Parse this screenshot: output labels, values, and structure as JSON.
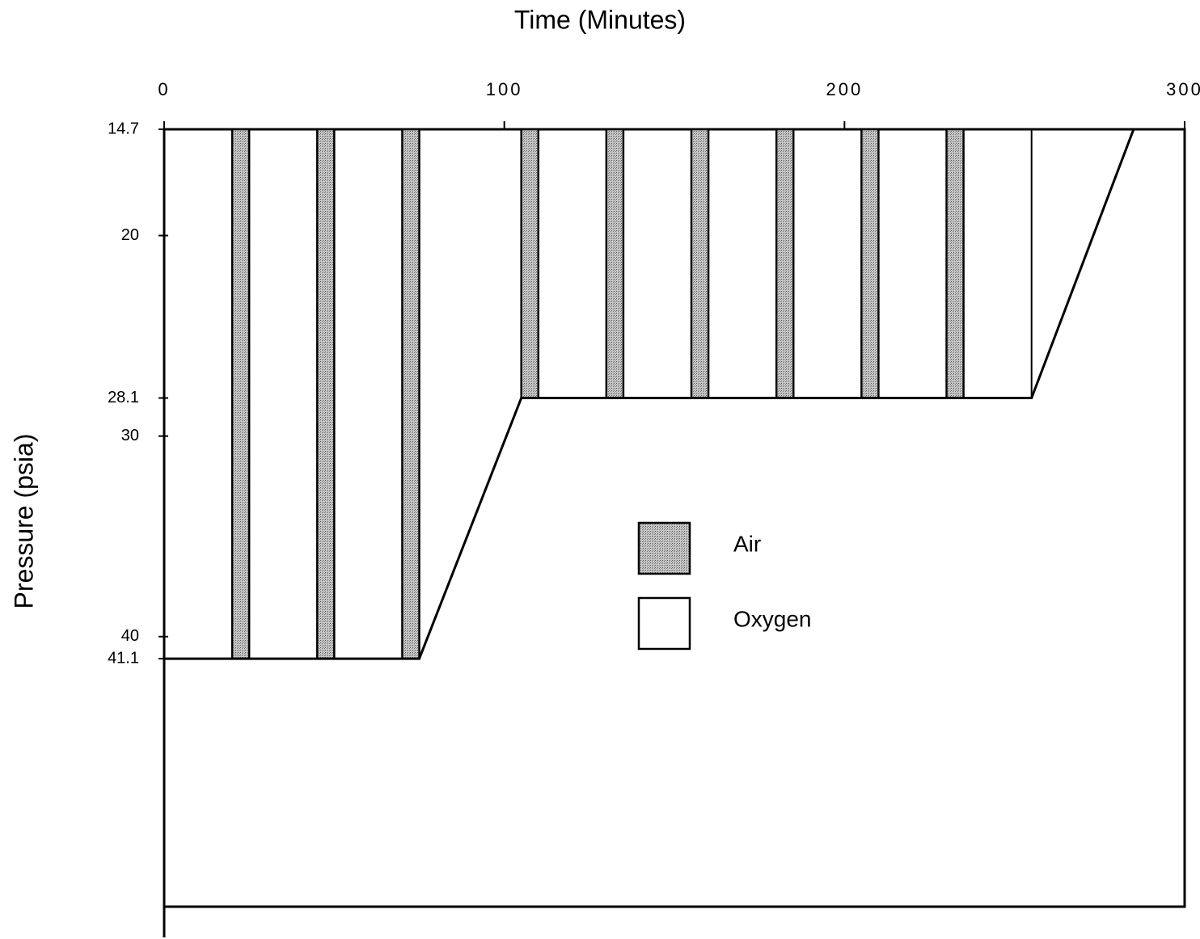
{
  "chart_data": {
    "type": "profile",
    "title": "Time (Minutes)",
    "y_label": "Pressure (psia)",
    "xlim": [
      0,
      300
    ],
    "xticks": [
      0,
      100,
      200,
      300
    ],
    "ylim": [
      14.7,
      55
    ],
    "yticks": [
      14.7,
      20,
      28.1,
      30,
      40,
      41.1
    ],
    "y_reversed": true,
    "profile": {
      "x": [
        0,
        0,
        75,
        105,
        255,
        285
      ],
      "y": [
        14.7,
        41.1,
        41.1,
        28.1,
        28.1,
        14.7
      ]
    },
    "series": [
      {
        "name": "Air",
        "color": "#a8a8a8",
        "start": [
          20,
          45,
          70,
          105,
          130,
          155,
          180,
          205,
          230
        ],
        "end": [
          25,
          50,
          75,
          110,
          135,
          160,
          185,
          210,
          235
        ],
        "values": [
          41.1,
          41.1,
          41.1,
          28.1,
          28.1,
          28.1,
          28.1,
          28.1,
          28.1
        ]
      },
      {
        "name": "Oxygen",
        "color": "#ffffff"
      }
    ]
  }
}
